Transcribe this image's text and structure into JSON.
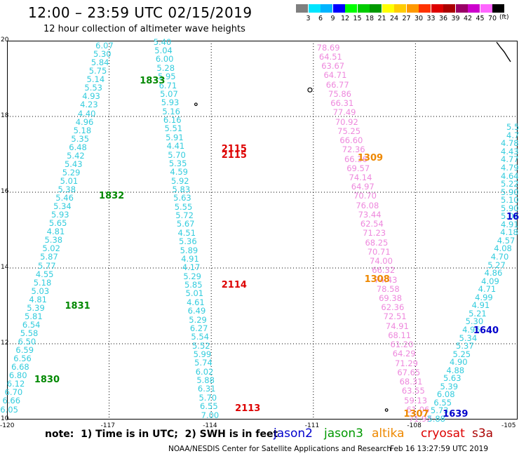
{
  "header": {
    "title": "12:00 – 23:59 UTC 02/15/2019",
    "subtitle": "12 hour collection of altimeter wave heights"
  },
  "color_scale": {
    "units": "(ft)",
    "bins": [
      {
        "label": "3",
        "color": "#7f7f7f"
      },
      {
        "label": "6",
        "color": "#00e5ff"
      },
      {
        "label": "9",
        "color": "#00b4ff"
      },
      {
        "label": "12",
        "color": "#0000ff"
      },
      {
        "label": "15",
        "color": "#00ff00"
      },
      {
        "label": "18",
        "color": "#00cc00"
      },
      {
        "label": "21",
        "color": "#009900"
      },
      {
        "label": "24",
        "color": "#ffff00"
      },
      {
        "label": "27",
        "color": "#ffcc00"
      },
      {
        "label": "30",
        "color": "#ff9900"
      },
      {
        "label": "33",
        "color": "#ff3300"
      },
      {
        "label": "36",
        "color": "#dd0000"
      },
      {
        "label": "39",
        "color": "#aa0000"
      },
      {
        "label": "42",
        "color": "#990066"
      },
      {
        "label": "45",
        "color": "#cc00cc"
      },
      {
        "label": "70",
        "color": "#ff66ff"
      },
      {
        "label": "",
        "color": "#000000"
      }
    ]
  },
  "map": {
    "lat_range": [
      10,
      20
    ],
    "lon_range": [
      -120,
      -105
    ],
    "lat_labels": [
      "20",
      "18",
      "16",
      "14",
      "12",
      "10"
    ],
    "lon_labels": [
      "-120",
      "-117",
      "-114",
      "-111",
      "-108",
      "-105"
    ],
    "tracks": [
      {
        "color": "#33ccdd",
        "start": [
          -117.4,
          19.85
        ],
        "end": [
          -120.2,
          10.25
        ],
        "values": [
          "6.07",
          "5.30",
          "5.84",
          "5.75",
          "5.14",
          "5.53",
          "4.93",
          "4.23",
          "4.40",
          "4.96",
          "5.18",
          "5.35",
          "6.48",
          "5.42",
          "5.43",
          "5.29",
          "5.01",
          "5.38",
          "5.46",
          "5.34",
          "5.93",
          "5.65",
          "4.81",
          "5.38",
          "5.02",
          "5.87",
          "5.77",
          "4.55",
          "5.18",
          "5.03",
          "4.81",
          "5.39",
          "5.81",
          "6.54",
          "5.58",
          "6.50",
          "6.59",
          "6.56",
          "6.68",
          "6.80",
          "6.12",
          "6.70",
          "6.66",
          "6.05"
        ]
      },
      {
        "color": "#33ccdd",
        "start": [
          -115.7,
          19.95
        ],
        "end": [
          -114.3,
          10.1
        ],
        "values": [
          "5.40",
          "5.04",
          "6.00",
          "5.28",
          "5.95",
          "6.71",
          "5.07",
          "5.93",
          "5.16",
          "6.16",
          "5.51",
          "5.91",
          "4.41",
          "5.70",
          "5.35",
          "4.59",
          "5.92",
          "5.83",
          "5.63",
          "5.55",
          "5.72",
          "5.67",
          "4.51",
          "5.36",
          "5.89",
          "4.91",
          "4.17",
          "5.29",
          "5.85",
          "5.01",
          "4.61",
          "6.49",
          "5.29",
          "6.27",
          "5.54",
          "5.52",
          "5.99",
          "5.74",
          "6.02",
          "5.88",
          "6.31",
          "5.70",
          "6.55",
          "7.00"
        ]
      },
      {
        "color": "#ee88dd",
        "start": [
          -110.9,
          19.8
        ],
        "end": [
          -108.2,
          10.0
        ],
        "values": [
          "78.69",
          "64.51",
          "63.67",
          "64.71",
          "66.77",
          "75.86",
          "66.31",
          "77.49",
          "70.92",
          "75.25",
          "66.60",
          "72.36",
          "66.36",
          "69.57",
          "74.14",
          "64.97",
          "70.70",
          "76.08",
          "73.44",
          "62.54",
          "71.23",
          "68.25",
          "70.71",
          "74.00",
          "66.32",
          "74.43",
          "78.58",
          "69.38",
          "62.36",
          "72.51",
          "74.91",
          "68.11",
          "61.20",
          "64.29",
          "71.29",
          "67.65",
          "68.31",
          "63.55",
          "59.13",
          "61.06",
          "71.92"
        ]
      },
      {
        "color": "#33ccdd",
        "start": [
          -104.3,
          17.7
        ],
        "end": [
          -107.65,
          10.0
        ],
        "values": [
          "5.5",
          "4.7",
          "4.78",
          "4.43",
          "4.77",
          "4.79",
          "4.64",
          "5.22",
          "5.90",
          "5.10",
          "5.90",
          "5.01",
          "4.91",
          "4.18",
          "4.57",
          "4.08",
          "4.70",
          "5.27",
          "4.86",
          "4.09",
          "4.71",
          "4.99",
          "4.91",
          "5.21",
          "5.30",
          "4.96",
          "5.34",
          "5.37",
          "5.25",
          "4.90",
          "4.88",
          "5.63",
          "5.39",
          "6.08",
          "6.55",
          "5.73",
          "5.88"
        ]
      }
    ],
    "pass_labels": [
      {
        "text": "1833",
        "lon": -116.1,
        "lat": 18.95,
        "color": "#008800"
      },
      {
        "text": "1832",
        "lon": -117.3,
        "lat": 15.9,
        "color": "#008800"
      },
      {
        "text": "1831",
        "lon": -118.3,
        "lat": 13.0,
        "color": "#008800"
      },
      {
        "text": "1830",
        "lon": -119.2,
        "lat": 11.05,
        "color": "#008800"
      },
      {
        "text": "2115",
        "lon": -113.7,
        "lat": 17.15,
        "color": "#dd0000"
      },
      {
        "text": "2115",
        "lon": -113.7,
        "lat": 16.98,
        "color": "#dd0000"
      },
      {
        "text": "2114",
        "lon": -113.7,
        "lat": 13.55,
        "color": "#dd0000"
      },
      {
        "text": "2113",
        "lon": -113.3,
        "lat": 10.3,
        "color": "#dd0000"
      },
      {
        "text": "1309",
        "lon": -109.7,
        "lat": 16.9,
        "color": "#ee8800"
      },
      {
        "text": "1308",
        "lon": -109.5,
        "lat": 13.7,
        "color": "#ee8800"
      },
      {
        "text": "1307",
        "lon": -108.35,
        "lat": 10.15,
        "color": "#ee8800"
      },
      {
        "text": "1640",
        "lon": -106.3,
        "lat": 12.35,
        "color": "#0000cc"
      },
      {
        "text": "1639",
        "lon": -107.2,
        "lat": 10.15,
        "color": "#0000cc"
      },
      {
        "text": "16",
        "lon": -105.2,
        "lat": 15.35,
        "color": "#0000cc"
      }
    ]
  },
  "note": "note:  1) Time is in UTC;  2) SWH is in feet",
  "legend": [
    {
      "text": "jason2",
      "color": "#0000cc"
    },
    {
      "text": "jason3",
      "color": "#009900"
    },
    {
      "text": "altika",
      "color": "#ee8800"
    },
    {
      "text": "cryosat",
      "color": "#dd0000"
    },
    {
      "text": "s3a",
      "color": "#aa0000"
    }
  ],
  "credit": "NOAA/NESDIS Center for Satellite Applications and Research",
  "timestamp": "Feb 16 13:27:59 UTC 2019"
}
